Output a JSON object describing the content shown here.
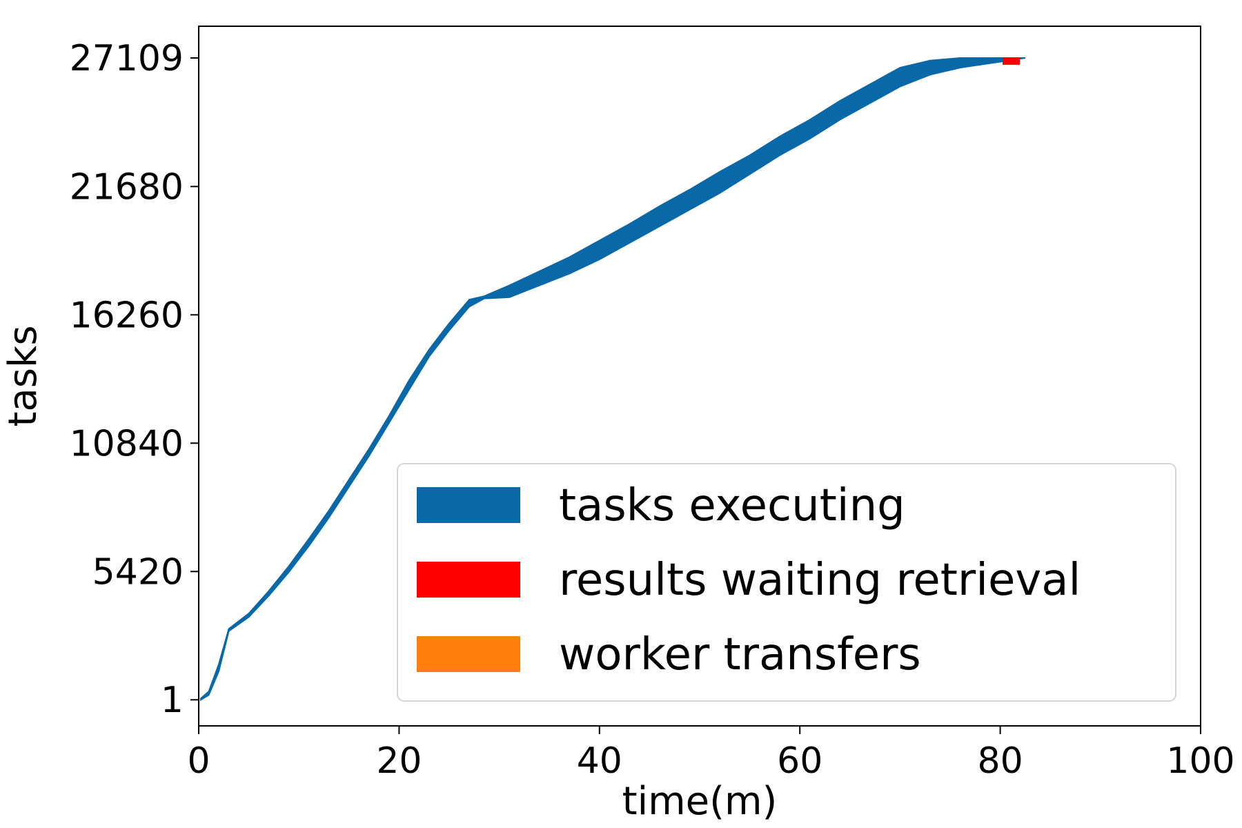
{
  "chart_data": {
    "type": "area",
    "xlabel": "time(m)",
    "ylabel": "tasks",
    "xlim": [
      0,
      100
    ],
    "ylim": [
      -1100,
      28450
    ],
    "x_ticks": [
      0,
      20,
      40,
      60,
      80,
      100
    ],
    "y_ticks": [
      1,
      5420,
      10840,
      16260,
      21680,
      27109
    ],
    "grid": false,
    "legend_position": "lower-right",
    "colors": {
      "tasks_executing": "#0868a8",
      "results_waiting_retrieval": "#ff0000",
      "worker_transfers": "#ff7f0e"
    },
    "series": [
      {
        "name": "tasks executing",
        "color": "#0868a8",
        "x": [
          0.2,
          1,
          2,
          3,
          5,
          7,
          9,
          11,
          13,
          15,
          17,
          19,
          21,
          23,
          25,
          27,
          28.5,
          31,
          34,
          37,
          40,
          43,
          46,
          49,
          52,
          55,
          58,
          61,
          64,
          67,
          70,
          73,
          76,
          80,
          82.5
        ],
        "lower": [
          1,
          200,
          1200,
          2900,
          3500,
          4400,
          5400,
          6500,
          7700,
          9000,
          10300,
          11700,
          13100,
          14500,
          15600,
          16600,
          16950,
          17000,
          17500,
          18000,
          18600,
          19300,
          20000,
          20700,
          21400,
          22200,
          23000,
          23700,
          24500,
          25200,
          25900,
          26400,
          26700,
          26950,
          27109
        ],
        "upper": [
          60,
          350,
          1500,
          3000,
          3650,
          4600,
          5650,
          6800,
          8000,
          9300,
          10600,
          12000,
          13500,
          14800,
          15900,
          16900,
          17050,
          17500,
          18100,
          18700,
          19400,
          20100,
          20850,
          21550,
          22300,
          23000,
          23800,
          24500,
          25300,
          26000,
          26700,
          27000,
          27109,
          27109,
          27109
        ]
      },
      {
        "name": "results waiting retrieval",
        "color": "#ff0000",
        "x": [
          80.3,
          81.9
        ],
        "lower": [
          26850,
          26850
        ],
        "upper": [
          27109,
          27109
        ]
      },
      {
        "name": "worker transfers",
        "color": "#ff7f0e",
        "x": [],
        "lower": [],
        "upper": []
      }
    ]
  }
}
